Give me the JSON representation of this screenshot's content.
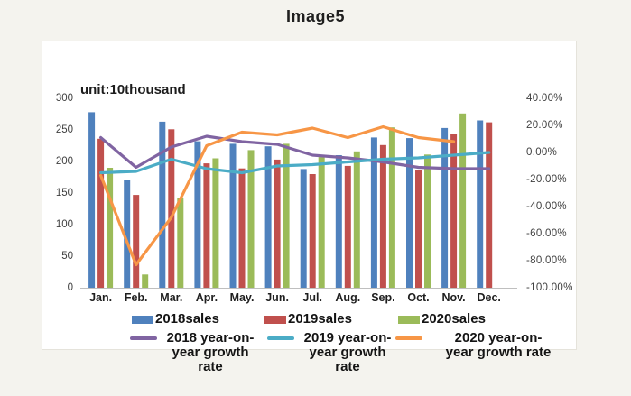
{
  "chart_data": {
    "type": "combo_bar_line",
    "title": "Image5",
    "unit_label": "unit:10thousand",
    "categories": [
      "Jan.",
      "Feb.",
      "Mar.",
      "Apr.",
      "May.",
      "Jun.",
      "Jul.",
      "Aug.",
      "Sep.",
      "Oct.",
      "Nov.",
      "Dec."
    ],
    "bar_series": [
      {
        "name": "2018sales",
        "color": "#4F81BD",
        "axis": "left",
        "values": [
          278,
          170,
          263,
          232,
          228,
          224,
          188,
          210,
          238,
          237,
          253,
          265
        ]
      },
      {
        "name": "2019sales",
        "color": "#C0504D",
        "axis": "left",
        "values": [
          236,
          147,
          251,
          197,
          189,
          203,
          180,
          193,
          226,
          187,
          244,
          262
        ]
      },
      {
        "name": "2020sales",
        "color": "#9BBB59",
        "axis": "left",
        "values": [
          190,
          21,
          142,
          205,
          218,
          228,
          207,
          216,
          254,
          211,
          276,
          null
        ]
      }
    ],
    "line_series": [
      {
        "name": "2018 year-on-year growth rate",
        "color": "#8064A2",
        "axis": "right",
        "values_pct": [
          11,
          -11,
          4,
          12,
          8,
          6,
          -2,
          -4,
          -7,
          -11,
          -12,
          -12
        ]
      },
      {
        "name": "2019 year-on-year growth rate",
        "color": "#4BACC6",
        "axis": "right",
        "values_pct": [
          -15,
          -14,
          -5,
          -12,
          -15,
          -10,
          -9,
          -7,
          -5,
          -4,
          -2,
          0
        ]
      },
      {
        "name": "2020 year-on-year growth rate",
        "color": "#F79646",
        "axis": "right",
        "values_pct": [
          -17,
          -83,
          -48,
          5,
          15,
          13,
          18,
          11,
          19,
          11,
          8,
          null
        ]
      }
    ],
    "left_axis": {
      "min": 0,
      "max": 300,
      "tick_labels_top_to_bottom": [
        "300",
        "250",
        "200",
        "150",
        "100",
        "50",
        "0"
      ]
    },
    "right_axis": {
      "min": -100,
      "max": 40,
      "tick_labels_top_to_bottom": [
        "40.00%",
        "20.00%",
        "0.00%",
        "-20.00%",
        "-40.00%",
        "-60.00%",
        "-80.00%",
        "-100.00%"
      ]
    },
    "legend_position": "bottom",
    "grid": false,
    "legend": {
      "row1": [
        {
          "label": "2018sales",
          "color": "#4F81BD"
        },
        {
          "label": "2019sales",
          "color": "#C0504D"
        },
        {
          "label": "2020sales",
          "color": "#9BBB59"
        }
      ],
      "row2": [
        {
          "label": "2018 year-on-year growth rate",
          "lines": [
            "2018 year-on-",
            "year growth",
            "rate"
          ],
          "color": "#8064A2"
        },
        {
          "label": "2019 year-on-year growth rate",
          "lines": [
            "2019 year-on-",
            "year growth",
            "rate"
          ],
          "color": "#4BACC6"
        },
        {
          "label": "2020 year-on-year growth rate",
          "lines": [
            "2020 year-on-",
            "year growth rate"
          ],
          "color": "#F79646"
        }
      ]
    },
    "colors": {
      "axis_line": "#BFBFBF",
      "tick_text": "#404040",
      "box_border": "#E5E3DB",
      "box_bg": "#FFFFFF",
      "page_bg": "#F4F3EE"
    }
  }
}
